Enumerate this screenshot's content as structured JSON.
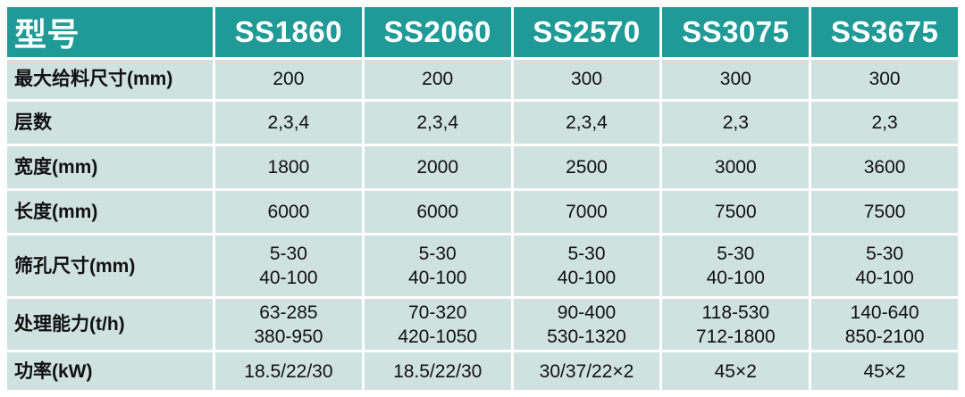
{
  "table": {
    "header": {
      "label": "型号",
      "models": [
        "SS1860",
        "SS2060",
        "SS2570",
        "SS3075",
        "SS3675"
      ]
    },
    "rows": [
      {
        "label": "最大给料尺寸(mm)",
        "cells": [
          [
            "200"
          ],
          [
            "200"
          ],
          [
            "300"
          ],
          [
            "300"
          ],
          [
            "300"
          ]
        ]
      },
      {
        "label": "层数",
        "cells": [
          [
            "2,3,4"
          ],
          [
            "2,3,4"
          ],
          [
            "2,3,4"
          ],
          [
            "2,3"
          ],
          [
            "2,3"
          ]
        ]
      },
      {
        "label": "宽度(mm)",
        "cells": [
          [
            "1800"
          ],
          [
            "2000"
          ],
          [
            "2500"
          ],
          [
            "3000"
          ],
          [
            "3600"
          ]
        ]
      },
      {
        "label": "长度(mm)",
        "cells": [
          [
            "6000"
          ],
          [
            "6000"
          ],
          [
            "7000"
          ],
          [
            "7500"
          ],
          [
            "7500"
          ]
        ]
      },
      {
        "label": "筛孔尺寸(mm)",
        "cells": [
          [
            "5-30",
            "40-100"
          ],
          [
            "5-30",
            "40-100"
          ],
          [
            "5-30",
            "40-100"
          ],
          [
            "5-30",
            "40-100"
          ],
          [
            "5-30",
            "40-100"
          ]
        ]
      },
      {
        "label": "处理能力(t/h)",
        "cells": [
          [
            "63-285",
            "380-950"
          ],
          [
            "70-320",
            "420-1050"
          ],
          [
            "90-400",
            "530-1320"
          ],
          [
            "118-530",
            "712-1800"
          ],
          [
            "140-640",
            "850-2100"
          ]
        ]
      },
      {
        "label": "功率(kW)",
        "cells": [
          [
            "18.5/22/30"
          ],
          [
            "18.5/22/30"
          ],
          [
            "30/37/22×2"
          ],
          [
            "45×2"
          ],
          [
            "45×2"
          ]
        ]
      }
    ]
  }
}
